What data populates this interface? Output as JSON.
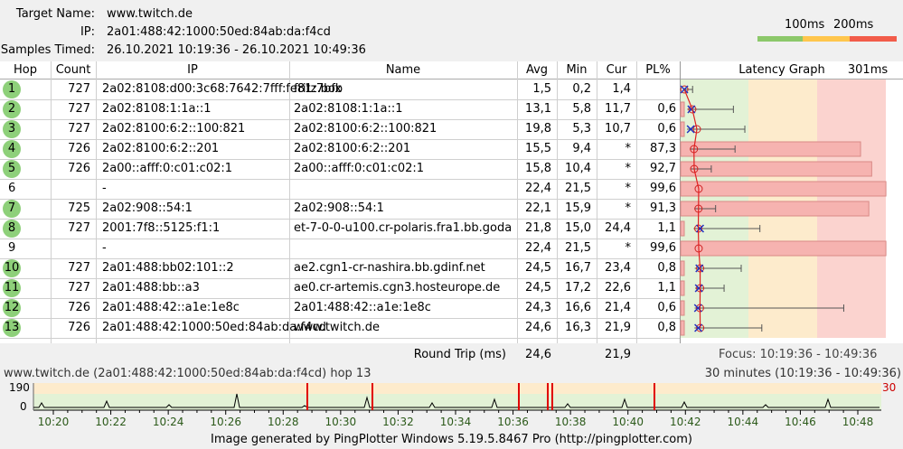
{
  "header": {
    "target_label": "Target Name:",
    "target_value": "www.twitch.de",
    "ip_label": "IP:",
    "ip_value": "2a01:488:42:1000:50ed:84ab:da:f4cd",
    "samples_label": "Samples Timed:",
    "samples_value": "26.10.2021 10:19:36 - 26.10.2021 10:49:36"
  },
  "legend": {
    "label_100": "100ms",
    "label_200": "200ms",
    "colors": {
      "green": "#8cc86a",
      "yellow": "#ffc64d",
      "red": "#f25c4a"
    }
  },
  "table": {
    "headers": {
      "hop": "Hop",
      "count": "Count",
      "ip": "IP",
      "name": "Name",
      "avg": "Avg",
      "min": "Min",
      "cur": "Cur",
      "pl": "PL%",
      "graph": "Latency Graph",
      "graph_max": "301ms"
    },
    "rows": [
      {
        "hop": "1",
        "badge": true,
        "count": "727",
        "ip": "2a02:8108:d00:3c68:7642:7fff:fe81:7bfb",
        "name": "fritz.box",
        "avg": "1,5",
        "min": "0,2",
        "cur": "1,4",
        "pl": ""
      },
      {
        "hop": "2",
        "badge": true,
        "count": "727",
        "ip": "2a02:8108:1:1a::1",
        "name": "2a02:8108:1:1a::1",
        "avg": "13,1",
        "min": "5,8",
        "cur": "11,7",
        "pl": "0,6"
      },
      {
        "hop": "3",
        "badge": true,
        "count": "727",
        "ip": "2a02:8100:6:2::100:821",
        "name": "2a02:8100:6:2::100:821",
        "avg": "19,8",
        "min": "5,3",
        "cur": "10,7",
        "pl": "0,6"
      },
      {
        "hop": "4",
        "badge": true,
        "count": "726",
        "ip": "2a02:8100:6:2::201",
        "name": "2a02:8100:6:2::201",
        "avg": "15,5",
        "min": "9,4",
        "cur": "*",
        "pl": "87,3"
      },
      {
        "hop": "5",
        "badge": true,
        "count": "726",
        "ip": "2a00::afff:0:c01:c02:1",
        "name": "2a00::afff:0:c01:c02:1",
        "avg": "15,8",
        "min": "10,4",
        "cur": "*",
        "pl": "92,7"
      },
      {
        "hop": "6",
        "badge": false,
        "count": "",
        "ip": "-",
        "name": "",
        "avg": "22,4",
        "min": "21,5",
        "cur": "*",
        "pl": "99,6"
      },
      {
        "hop": "7",
        "badge": true,
        "count": "725",
        "ip": "2a02:908::54:1",
        "name": "2a02:908::54:1",
        "avg": "22,1",
        "min": "15,9",
        "cur": "*",
        "pl": "91,3"
      },
      {
        "hop": "8",
        "badge": true,
        "count": "727",
        "ip": "2001:7f8::5125:f1:1",
        "name": "et-7-0-0-u100.cr-polaris.fra1.bb.goda",
        "avg": "21,8",
        "min": "15,0",
        "cur": "24,4",
        "pl": "1,1"
      },
      {
        "hop": "9",
        "badge": false,
        "count": "",
        "ip": "-",
        "name": "",
        "avg": "22,4",
        "min": "21,5",
        "cur": "*",
        "pl": "99,6"
      },
      {
        "hop": "10",
        "badge": true,
        "count": "727",
        "ip": "2a01:488:bb02:101::2",
        "name": "ae2.cgn1-cr-nashira.bb.gdinf.net",
        "avg": "24,5",
        "min": "16,7",
        "cur": "23,4",
        "pl": "0,8"
      },
      {
        "hop": "11",
        "badge": true,
        "count": "727",
        "ip": "2a01:488:bb::a3",
        "name": "ae0.cr-artemis.cgn3.hosteurope.de",
        "avg": "24,5",
        "min": "17,2",
        "cur": "22,6",
        "pl": "1,1"
      },
      {
        "hop": "12",
        "badge": true,
        "count": "726",
        "ip": "2a01:488:42::a1e:1e8c",
        "name": "2a01:488:42::a1e:1e8c",
        "avg": "24,3",
        "min": "16,6",
        "cur": "21,4",
        "pl": "0,6"
      },
      {
        "hop": "13",
        "badge": true,
        "count": "726",
        "ip": "2a01:488:42:1000:50ed:84ab:da:f4cd",
        "name": "www.twitch.de",
        "avg": "24,6",
        "min": "16,3",
        "cur": "21,9",
        "pl": "0,8"
      }
    ],
    "footer": {
      "label": "Round Trip (ms)",
      "avg": "24,6",
      "cur": "21,9",
      "focus": "Focus: 10:19:36 - 10:49:36"
    }
  },
  "timeline": {
    "title": "www.twitch.de (2a01:488:42:1000:50ed:84ab:da:f4cd) hop 13",
    "range": "30 minutes (10:19:36 - 10:49:36)",
    "y_max": "190",
    "y_min": "0",
    "right_max": "30",
    "ticks": [
      "10:20",
      "10:22",
      "10:24",
      "10:26",
      "10:28",
      "10:30",
      "10:32",
      "10:34",
      "10:36",
      "10:38",
      "10:40",
      "10:42",
      "10:44",
      "10:46",
      "10:48"
    ]
  },
  "credit": "Image generated by PingPlotter Windows 5.19.5.8467 Pro (http://pingplotter.com)"
}
